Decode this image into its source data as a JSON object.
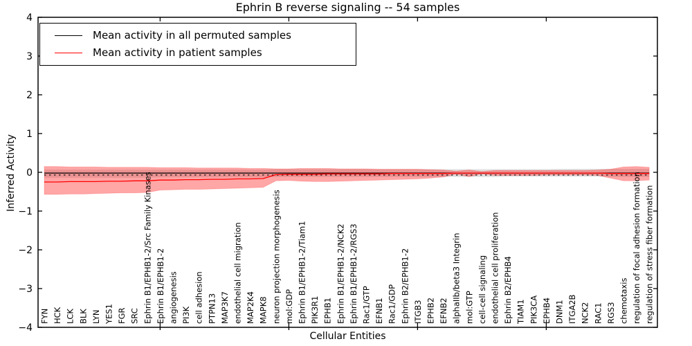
{
  "title": "Ephrin B reverse signaling -- 54 samples",
  "legend": {
    "items": [
      {
        "label": "Mean activity in all permuted samples",
        "color": "#000000"
      },
      {
        "label": "Mean activity in patient samples",
        "color": "#ff0000"
      }
    ]
  },
  "colors": {
    "patient_line": "#ff0000",
    "permuted_line": "#000000",
    "patient_band": "#ff0000",
    "permuted_band": "#e0e0e0",
    "frame": "#000000"
  },
  "chart_data": {
    "type": "line",
    "title": "Ephrin B reverse signaling -- 54 samples",
    "xlabel": "Cellular Entities",
    "ylabel": "Inferred Activity",
    "ylim": [
      -4,
      4
    ],
    "yticks": [
      4,
      3,
      2,
      1,
      0,
      -1,
      -2,
      -3,
      -4
    ],
    "xticks_major_positions": [
      10,
      20,
      30,
      40
    ],
    "grid": false,
    "legend_position": "upper left",
    "categories": [
      "FYN",
      "HCK",
      "LCK",
      "BLK",
      "LYN",
      "YES1",
      "FGR",
      "SRC",
      "Ephrin B1/EPHB1-2/Src Family Kinases",
      "Ephrin B1/EPHB1-2",
      "angiogenesis",
      "PI3K",
      "cell adhesion",
      "PTPN13",
      "MAP3K7",
      "endothelial cell migration",
      "MAP2K4",
      "MAPK8",
      "neuron projection morphogenesis",
      "mol:GDP",
      "Ephrin B1/EPHB1-2/Tiam1",
      "PIK3R1",
      "EPHB1",
      "Ephrin B1/EPHB1-2/NCK2",
      "Ephrin B1/EPHB1-2/RGS3",
      "Rac1/GTP",
      "EFNB1",
      "Rac1/GDP",
      "Ephrin B2/EPHB1-2",
      "ITGB3",
      "EPHB2",
      "EFNB2",
      "alphaIIb/beta3 Integrin",
      "mol:GTP",
      "cell-cell signaling",
      "endothelial cell proliferation",
      "Ephrin B2/EPHB4",
      "TIAM1",
      "PIK3CA",
      "EPHB4",
      "DNM1",
      "ITGA2B",
      "NCK2",
      "RAC1",
      "RGS3",
      "chemotaxis",
      "regulation of focal adhesion formation",
      "regulation of stress fiber formation"
    ],
    "series": [
      {
        "name": "Mean activity in all permuted samples",
        "color": "#000000",
        "line_style": "solid",
        "values": [
          -0.02,
          -0.02,
          -0.02,
          -0.02,
          -0.02,
          -0.02,
          -0.02,
          -0.02,
          -0.02,
          -0.02,
          -0.02,
          -0.02,
          -0.02,
          -0.02,
          -0.02,
          -0.02,
          -0.02,
          -0.02,
          -0.02,
          -0.02,
          -0.02,
          -0.02,
          -0.02,
          -0.02,
          -0.02,
          -0.02,
          -0.02,
          -0.02,
          -0.02,
          -0.02,
          -0.02,
          -0.02,
          -0.02,
          -0.02,
          -0.02,
          -0.02,
          -0.02,
          -0.02,
          -0.02,
          -0.02,
          -0.02,
          -0.02,
          -0.02,
          -0.02,
          -0.02,
          -0.02,
          -0.02,
          -0.02
        ]
      },
      {
        "name": "Mean activity in patient samples",
        "color": "#ff0000",
        "line_style": "solid",
        "values": [
          -0.25,
          -0.25,
          -0.24,
          -0.24,
          -0.24,
          -0.23,
          -0.23,
          -0.22,
          -0.22,
          -0.2,
          -0.2,
          -0.19,
          -0.19,
          -0.18,
          -0.18,
          -0.17,
          -0.17,
          -0.16,
          -0.06,
          -0.05,
          -0.05,
          -0.05,
          -0.04,
          -0.04,
          -0.04,
          -0.04,
          -0.04,
          -0.03,
          -0.03,
          -0.03,
          -0.03,
          -0.03,
          -0.02,
          -0.02,
          -0.02,
          -0.02,
          -0.02,
          -0.02,
          -0.02,
          -0.02,
          -0.02,
          -0.02,
          -0.02,
          -0.02,
          -0.03,
          -0.03,
          -0.03,
          -0.03
        ]
      }
    ],
    "bands": [
      {
        "name": "permuted samples range",
        "color": "#e0e0e0",
        "opacity": 1,
        "upper": [
          0.07,
          0.07,
          0.07,
          0.07,
          0.07,
          0.07,
          0.07,
          0.07,
          0.07,
          0.07,
          0.07,
          0.07,
          0.07,
          0.07,
          0.07,
          0.07,
          0.07,
          0.07,
          0.08,
          0.08,
          0.08,
          0.08,
          0.08,
          0.08,
          0.08,
          0.08,
          0.08,
          0.08,
          0.08,
          0.08,
          0.08,
          0.08,
          0.08,
          0.08,
          0.08,
          0.08,
          0.08,
          0.08,
          0.08,
          0.08,
          0.09,
          0.09,
          0.09,
          0.09,
          0.09,
          0.09,
          0.09,
          0.09
        ],
        "lower": [
          -0.14,
          -0.14,
          -0.14,
          -0.14,
          -0.14,
          -0.14,
          -0.14,
          -0.14,
          -0.14,
          -0.13,
          -0.13,
          -0.13,
          -0.13,
          -0.13,
          -0.13,
          -0.13,
          -0.13,
          -0.13,
          -0.12,
          -0.12,
          -0.12,
          -0.12,
          -0.12,
          -0.12,
          -0.12,
          -0.12,
          -0.12,
          -0.12,
          -0.12,
          -0.12,
          -0.12,
          -0.12,
          -0.12,
          -0.12,
          -0.12,
          -0.12,
          -0.11,
          -0.11,
          -0.11,
          -0.11,
          -0.11,
          -0.11,
          -0.11,
          -0.11,
          -0.12,
          -0.12,
          -0.12,
          -0.12
        ]
      },
      {
        "name": "patient samples range",
        "color": "#ff0000",
        "opacity": 0.35,
        "upper": [
          0.15,
          0.15,
          0.14,
          0.14,
          0.14,
          0.13,
          0.13,
          0.13,
          0.13,
          0.12,
          0.12,
          0.12,
          0.11,
          0.11,
          0.11,
          0.11,
          0.1,
          0.1,
          0.09,
          0.09,
          0.1,
          0.1,
          0.1,
          0.09,
          0.09,
          0.09,
          0.08,
          0.08,
          0.08,
          0.08,
          0.07,
          0.06,
          0.03,
          0.06,
          0.02,
          0.05,
          0.05,
          0.05,
          0.05,
          0.05,
          0.05,
          0.05,
          0.05,
          0.06,
          0.08,
          0.14,
          0.15,
          0.13
        ],
        "lower": [
          -0.57,
          -0.57,
          -0.56,
          -0.56,
          -0.55,
          -0.54,
          -0.53,
          -0.53,
          -0.52,
          -0.46,
          -0.45,
          -0.44,
          -0.44,
          -0.43,
          -0.42,
          -0.41,
          -0.4,
          -0.39,
          -0.22,
          -0.21,
          -0.23,
          -0.24,
          -0.24,
          -0.23,
          -0.22,
          -0.21,
          -0.2,
          -0.19,
          -0.18,
          -0.17,
          -0.15,
          -0.12,
          -0.05,
          -0.11,
          -0.04,
          -0.08,
          -0.08,
          -0.08,
          -0.08,
          -0.07,
          -0.07,
          -0.07,
          -0.07,
          -0.08,
          -0.15,
          -0.22,
          -0.22,
          -0.2
        ]
      }
    ],
    "reference_line": {
      "y": -0.07,
      "style": "dotted",
      "color": "#000000"
    }
  }
}
